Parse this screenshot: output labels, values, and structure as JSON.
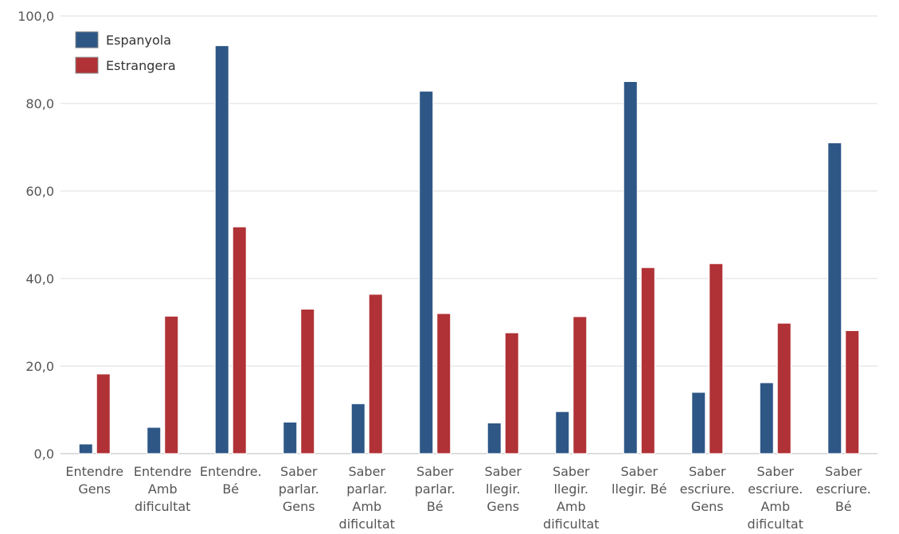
{
  "chart_data": {
    "type": "bar",
    "title": "",
    "xlabel": "",
    "ylabel": "",
    "ylim": [
      0,
      100
    ],
    "yticks": [
      "0,0",
      "20,0",
      "40,0",
      "60,0",
      "80,0",
      "100,0"
    ],
    "ytick_values": [
      0,
      20,
      40,
      60,
      80,
      100
    ],
    "grid": "horizontal",
    "legend_position": "top-left",
    "categories": [
      [
        "Entendre",
        "Gens"
      ],
      [
        "Entendre",
        "Amb",
        "dificultat"
      ],
      [
        "Entendre.",
        "Bé"
      ],
      [
        "Saber",
        "parlar.",
        "Gens"
      ],
      [
        "Saber",
        "parlar.",
        "Amb",
        "dificultat"
      ],
      [
        "Saber",
        "parlar.",
        "Bé"
      ],
      [
        "Saber",
        "llegir.",
        "Gens"
      ],
      [
        "Saber",
        "llegir.",
        "Amb",
        "dificultat"
      ],
      [
        "Saber",
        "llegir. Bé"
      ],
      [
        "Saber",
        "escriure.",
        "Gens"
      ],
      [
        "Saber",
        "escriure.",
        "Amb",
        "dificultat"
      ],
      [
        "Saber",
        "escriure.",
        "Bé"
      ]
    ],
    "series": [
      {
        "name": "Espanyola",
        "color": "#2e5786",
        "values": [
          2.2,
          6.0,
          93.2,
          7.2,
          11.4,
          82.8,
          7.0,
          9.6,
          85.0,
          14.0,
          16.2,
          71.0
        ]
      },
      {
        "name": "Estrangera",
        "color": "#b03236",
        "values": [
          18.2,
          31.4,
          51.8,
          33.0,
          36.4,
          32.0,
          27.6,
          31.3,
          42.5,
          43.4,
          29.8,
          28.1
        ]
      }
    ]
  }
}
